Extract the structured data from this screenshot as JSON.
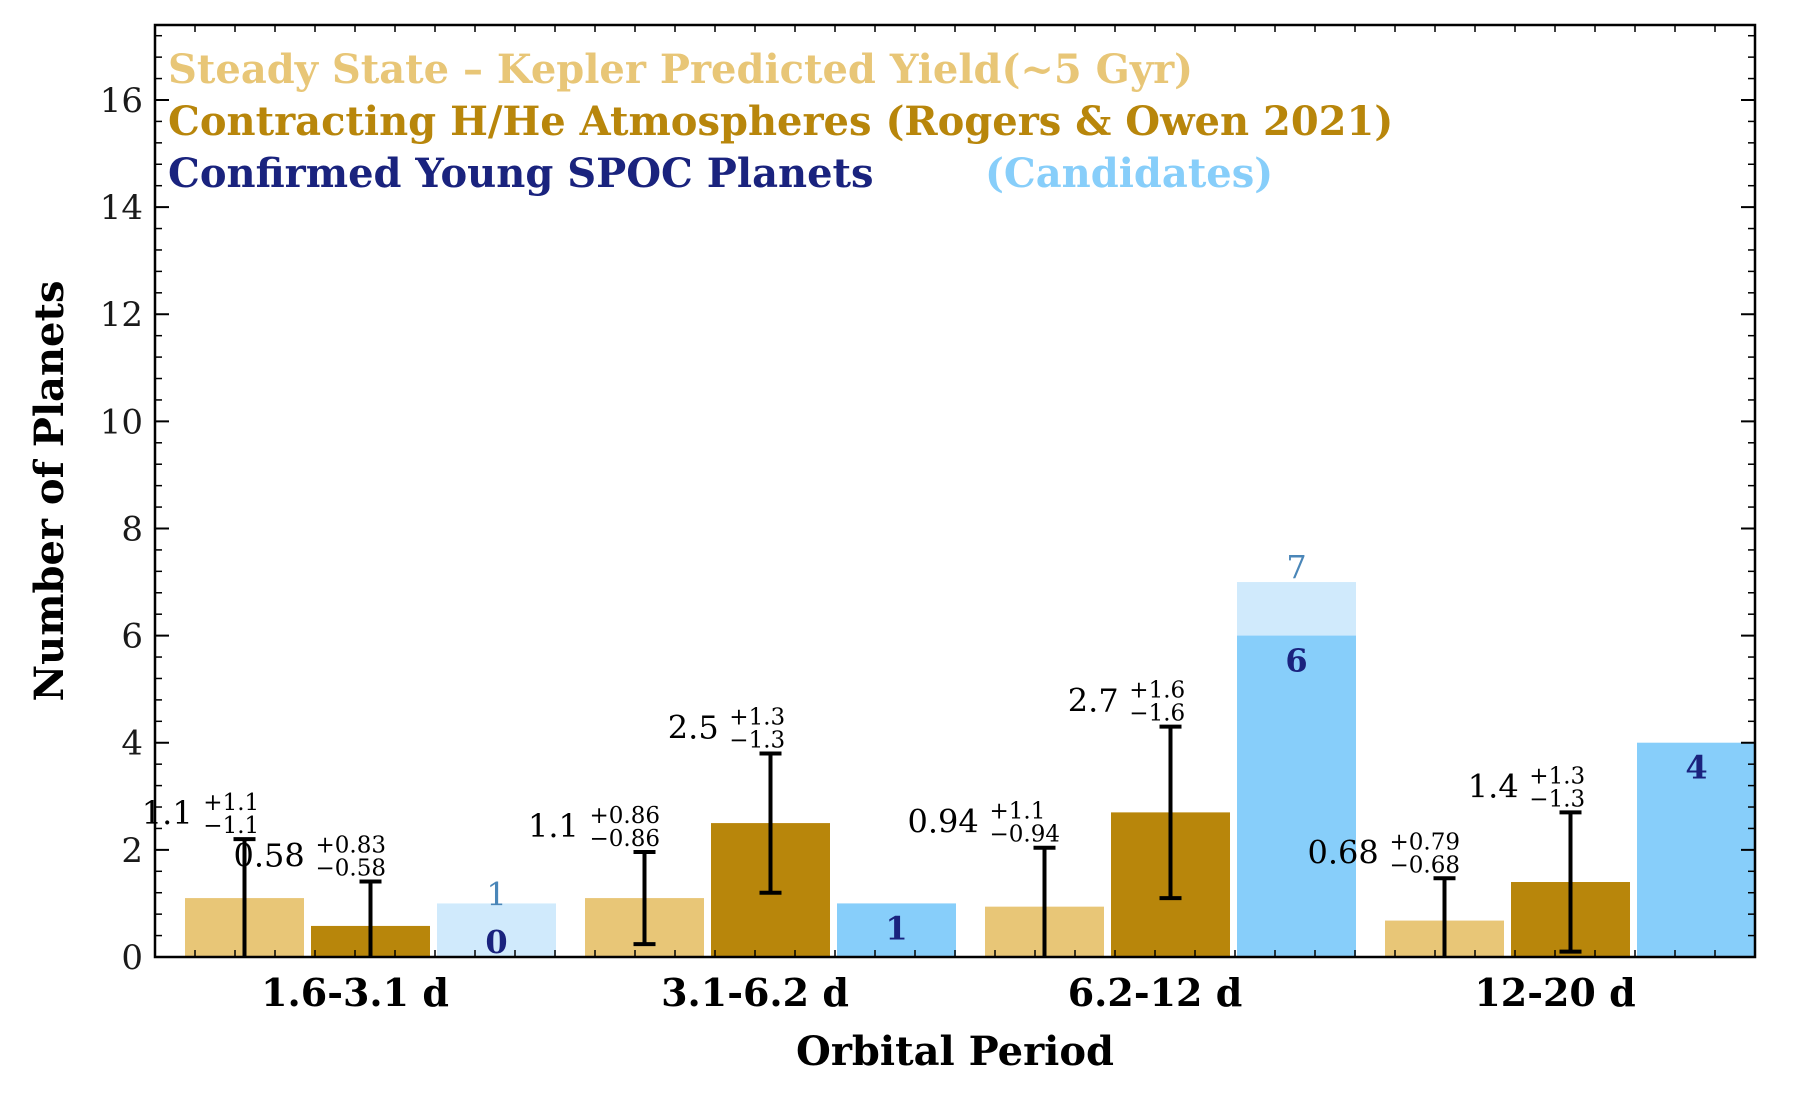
{
  "chart_data": {
    "type": "bar",
    "xlabel": "Orbital Period",
    "ylabel": "Number of Planets",
    "categories": [
      "1.6-3.1 d",
      "3.1-6.2 d",
      "6.2-12 d",
      "12-20 d"
    ],
    "ylim": [
      0,
      17.4
    ],
    "yticks": [
      0,
      2,
      4,
      6,
      8,
      10,
      12,
      14,
      16
    ],
    "yminor_step": 0.4,
    "grid": false,
    "legend_placement": "top-left",
    "series": [
      {
        "name": "Steady State – Kepler Predicted Yield(~5 Gyr)",
        "color": "#e8c677",
        "values": [
          1.1,
          1.1,
          0.94,
          0.68
        ],
        "err_plus": [
          1.1,
          0.86,
          1.1,
          0.79
        ],
        "err_minus": [
          1.1,
          0.86,
          0.94,
          0.68
        ],
        "labels": [
          "1.1",
          "1.1",
          "0.94",
          "0.68"
        ],
        "labels_plus": [
          "+1.1",
          "+0.86",
          "+1.1",
          "+0.79"
        ],
        "labels_minus": [
          "−1.1",
          "−0.86",
          "−0.94",
          "−0.68"
        ]
      },
      {
        "name": "Contracting H/He Atmospheres (Rogers & Owen 2021)",
        "color": "#b8860b",
        "values": [
          0.58,
          2.5,
          2.7,
          1.4
        ],
        "err_plus": [
          0.83,
          1.3,
          1.6,
          1.3
        ],
        "err_minus": [
          0.58,
          1.3,
          1.6,
          1.3
        ],
        "labels": [
          "0.58",
          "2.5",
          "2.7",
          "1.4"
        ],
        "labels_plus": [
          "+0.83",
          "+1.3",
          "+1.6",
          "+1.3"
        ],
        "labels_minus": [
          "−0.58",
          "−1.3",
          "−1.6",
          "−1.3"
        ]
      },
      {
        "name": "Confirmed Young SPOC Planets",
        "color": "#87cefa",
        "values": [
          0,
          1,
          6,
          4
        ],
        "labels": [
          "0",
          "1",
          "6",
          "4"
        ],
        "label_color": "#1a237e"
      },
      {
        "name": "(Candidates)",
        "color": "#d0eafc",
        "values": [
          1,
          1,
          7,
          4
        ],
        "show_label": [
          true,
          false,
          true,
          false
        ],
        "labels": [
          "1",
          "1",
          "7",
          "4"
        ],
        "label_color": "#4a86b8"
      }
    ]
  }
}
